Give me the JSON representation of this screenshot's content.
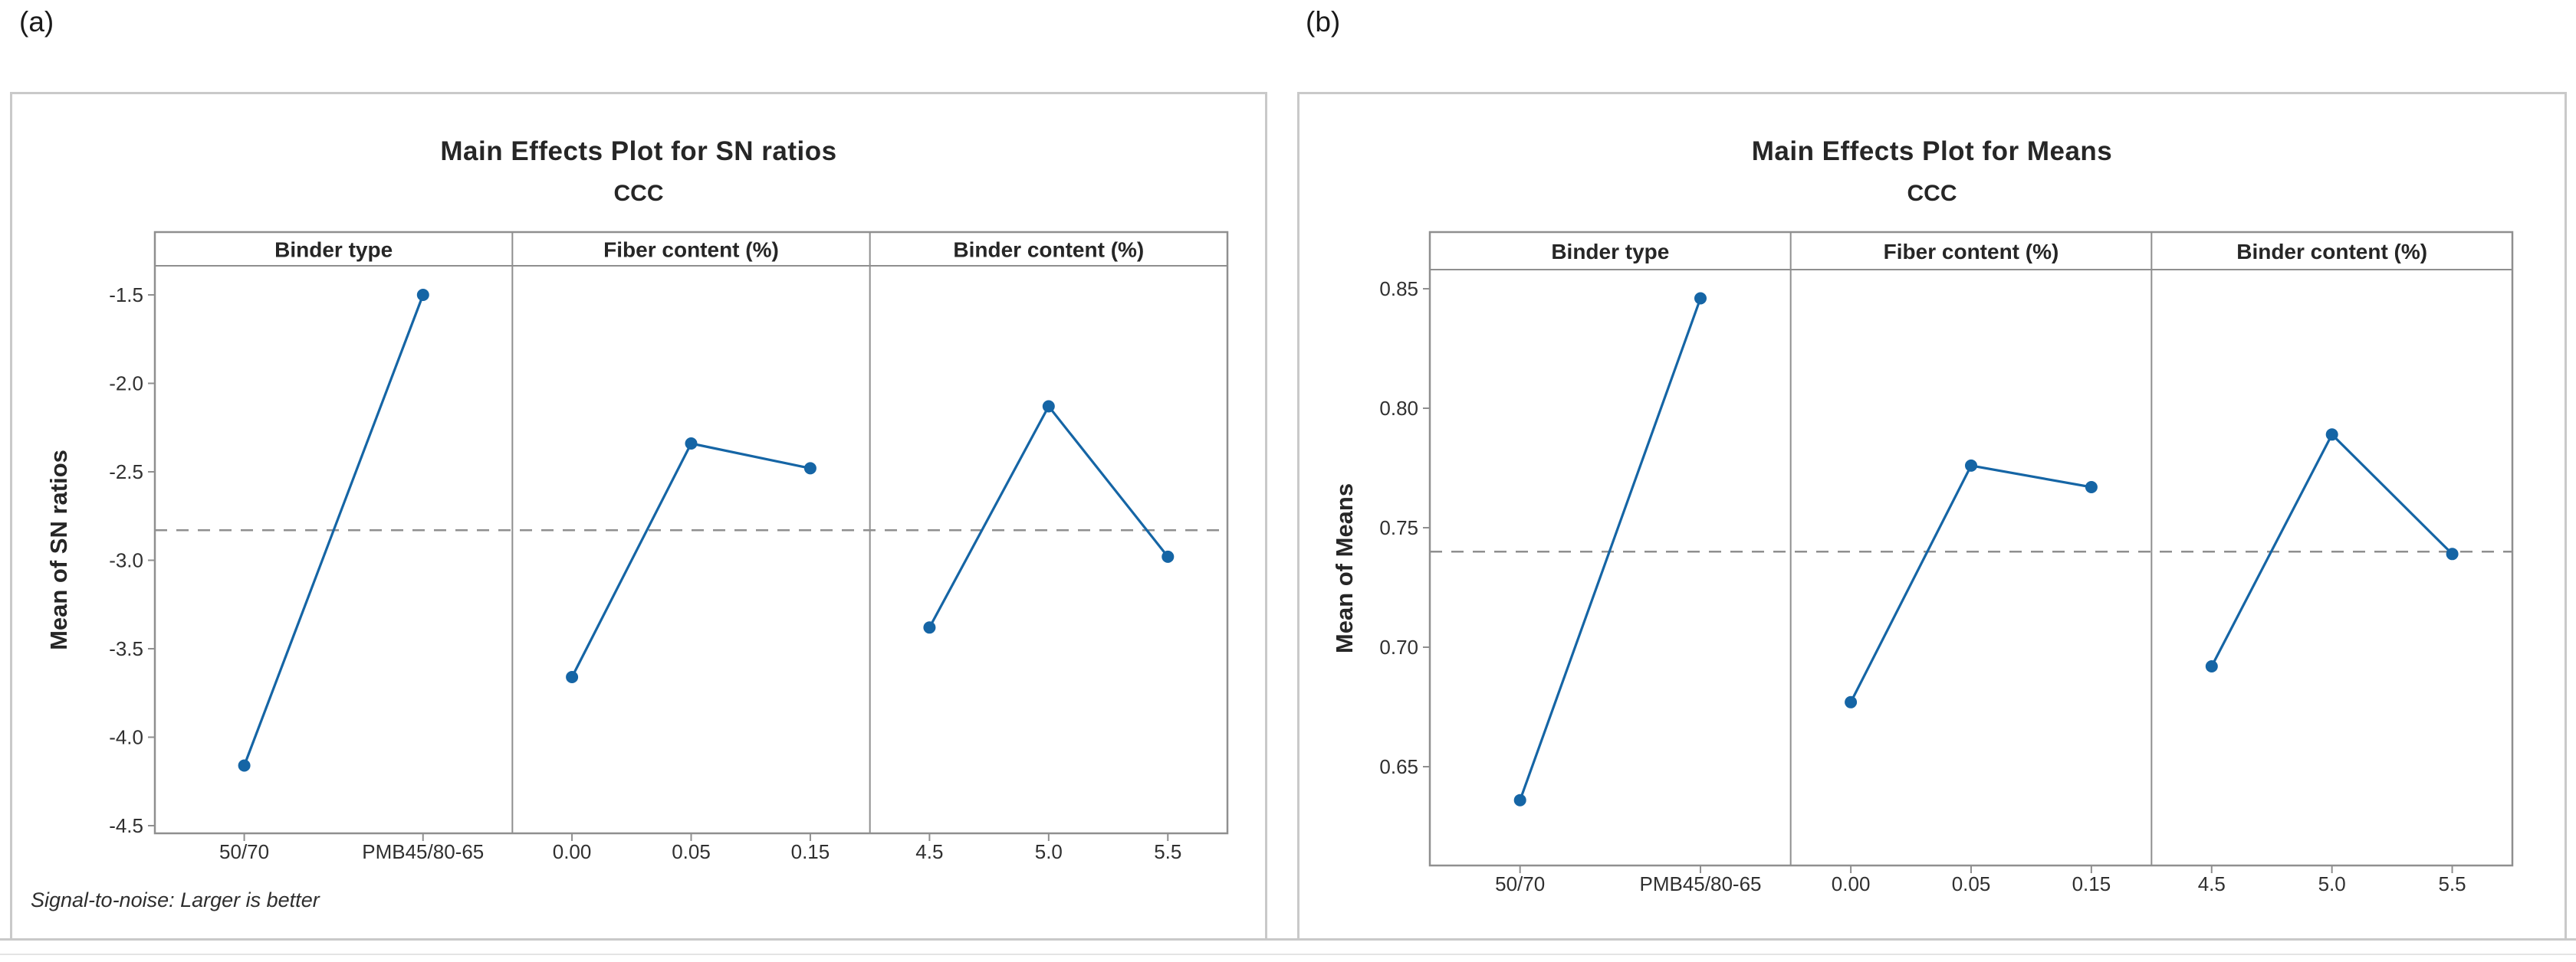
{
  "colors": {
    "series_blue": "#1565a5",
    "dashed_gray": "#8f8f8f",
    "frame_gray": "#8f8f8f",
    "box_border": "#c9c9c9",
    "text_dark": "#262626",
    "tick_text": "#303030"
  },
  "chart_data": [
    {
      "type": "line",
      "corner_label": "(a)",
      "title": "Main Effects Plot for SN ratios",
      "subtitle": "CCC",
      "ylabel": "Mean of SN ratios",
      "ylim": [
        -4.55,
        -1.33
      ],
      "yticks": [
        -1.5,
        -2.0,
        -2.5,
        -3.0,
        -3.5,
        -4.0,
        -4.5
      ],
      "ytick_labels": [
        "-1.5",
        "-2.0",
        "-2.5",
        "-3.0",
        "-3.5",
        "-4.0",
        "-4.5"
      ],
      "grand_mean": -2.83,
      "grand_mean_style": "dashed",
      "grid": false,
      "legend_position": "none",
      "panels": [
        {
          "header": "Binder type",
          "categories": [
            "50/70",
            "PMB45/80-65"
          ],
          "values": [
            -4.16,
            -1.5
          ]
        },
        {
          "header": "Fiber content (%)",
          "categories": [
            "0.00",
            "0.05",
            "0.15"
          ],
          "values": [
            -3.66,
            -2.34,
            -2.48
          ]
        },
        {
          "header": "Binder content (%)",
          "categories": [
            "4.5",
            "5.0",
            "5.5"
          ],
          "values": [
            -3.38,
            -2.13,
            -2.98
          ]
        }
      ],
      "footnote": "Signal-to-noise: Larger is better"
    },
    {
      "type": "line",
      "corner_label": "(b)",
      "title": "Main Effects Plot for Means",
      "subtitle": "CCC",
      "ylabel": "Mean of Means",
      "ylim": [
        0.609,
        0.858
      ],
      "yticks": [
        0.85,
        0.8,
        0.75,
        0.7,
        0.65
      ],
      "ytick_labels": [
        "0.85",
        "0.80",
        "0.75",
        "0.70",
        "0.65"
      ],
      "grand_mean": 0.74,
      "grand_mean_style": "dashed",
      "grid": false,
      "legend_position": "none",
      "panels": [
        {
          "header": "Binder type",
          "categories": [
            "50/70",
            "PMB45/80-65"
          ],
          "values": [
            0.636,
            0.846
          ]
        },
        {
          "header": "Fiber content (%)",
          "categories": [
            "0.00",
            "0.05",
            "0.15"
          ],
          "values": [
            0.677,
            0.776,
            0.767
          ]
        },
        {
          "header": "Binder content (%)",
          "categories": [
            "4.5",
            "5.0",
            "5.5"
          ],
          "values": [
            0.692,
            0.789,
            0.739
          ]
        }
      ],
      "footnote": ""
    }
  ]
}
